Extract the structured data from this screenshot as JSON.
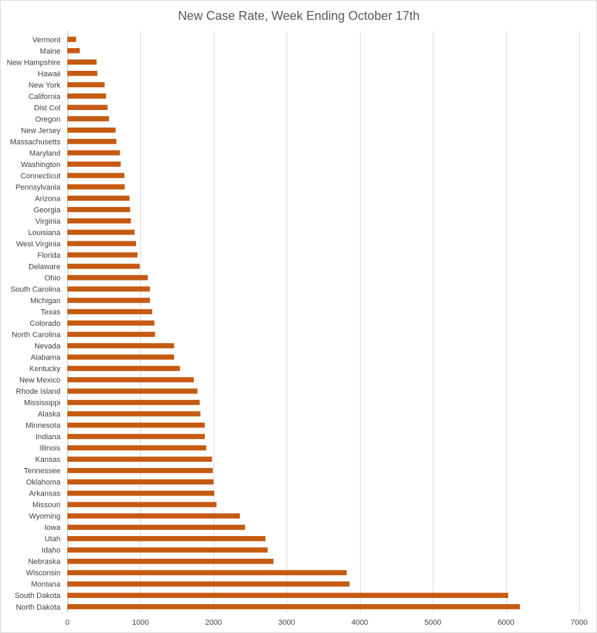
{
  "chart_data": {
    "type": "bar",
    "orientation": "horizontal",
    "title": "New Case Rate, Week Ending October 17th",
    "xlabel": "",
    "ylabel": "",
    "xlim": [
      0,
      7000
    ],
    "x_ticks": [
      0,
      1000,
      2000,
      3000,
      4000,
      5000,
      6000,
      7000
    ],
    "grid": true,
    "legend": "none",
    "bar_color": "#C55A11",
    "categories": [
      "Vermont",
      "Maine",
      "New Hampshire",
      "Hawaii",
      "New York",
      "California",
      "Dist Col",
      "Oregon",
      "New Jersey",
      "Massachusetts",
      "Maryland",
      "Washington",
      "Connecticut",
      "Pennsylvania",
      "Arizona",
      "Georgia",
      "Virginia",
      "Louisiana",
      "West Virginia",
      "Florida",
      "Delaware",
      "Ohio",
      "South Carolina",
      "Michigan",
      "Texas",
      "Colorado",
      "North Carolina",
      "Nevada",
      "Alabama",
      "Kentucky",
      "New Mexico",
      "Rhode Island",
      "Mississippi",
      "Alaska",
      "Minnesota",
      "Indiana",
      "Illinois",
      "Kansas",
      "Tennessee",
      "Oklahoma",
      "Arkansas",
      "Missouri",
      "Wyoming",
      "Iowa",
      "Utah",
      "Idaho",
      "Nebraska",
      "Wisconsin",
      "Montana",
      "South Dakota",
      "North Dakota"
    ],
    "values": [
      120,
      170,
      400,
      410,
      510,
      530,
      550,
      570,
      660,
      670,
      720,
      730,
      780,
      785,
      850,
      860,
      870,
      920,
      940,
      960,
      990,
      1100,
      1130,
      1130,
      1160,
      1190,
      1200,
      1460,
      1460,
      1540,
      1730,
      1780,
      1810,
      1820,
      1880,
      1880,
      1900,
      1980,
      1990,
      2000,
      2010,
      2040,
      2360,
      2430,
      2710,
      2740,
      2820,
      3820,
      3860,
      6030,
      6190
    ]
  }
}
